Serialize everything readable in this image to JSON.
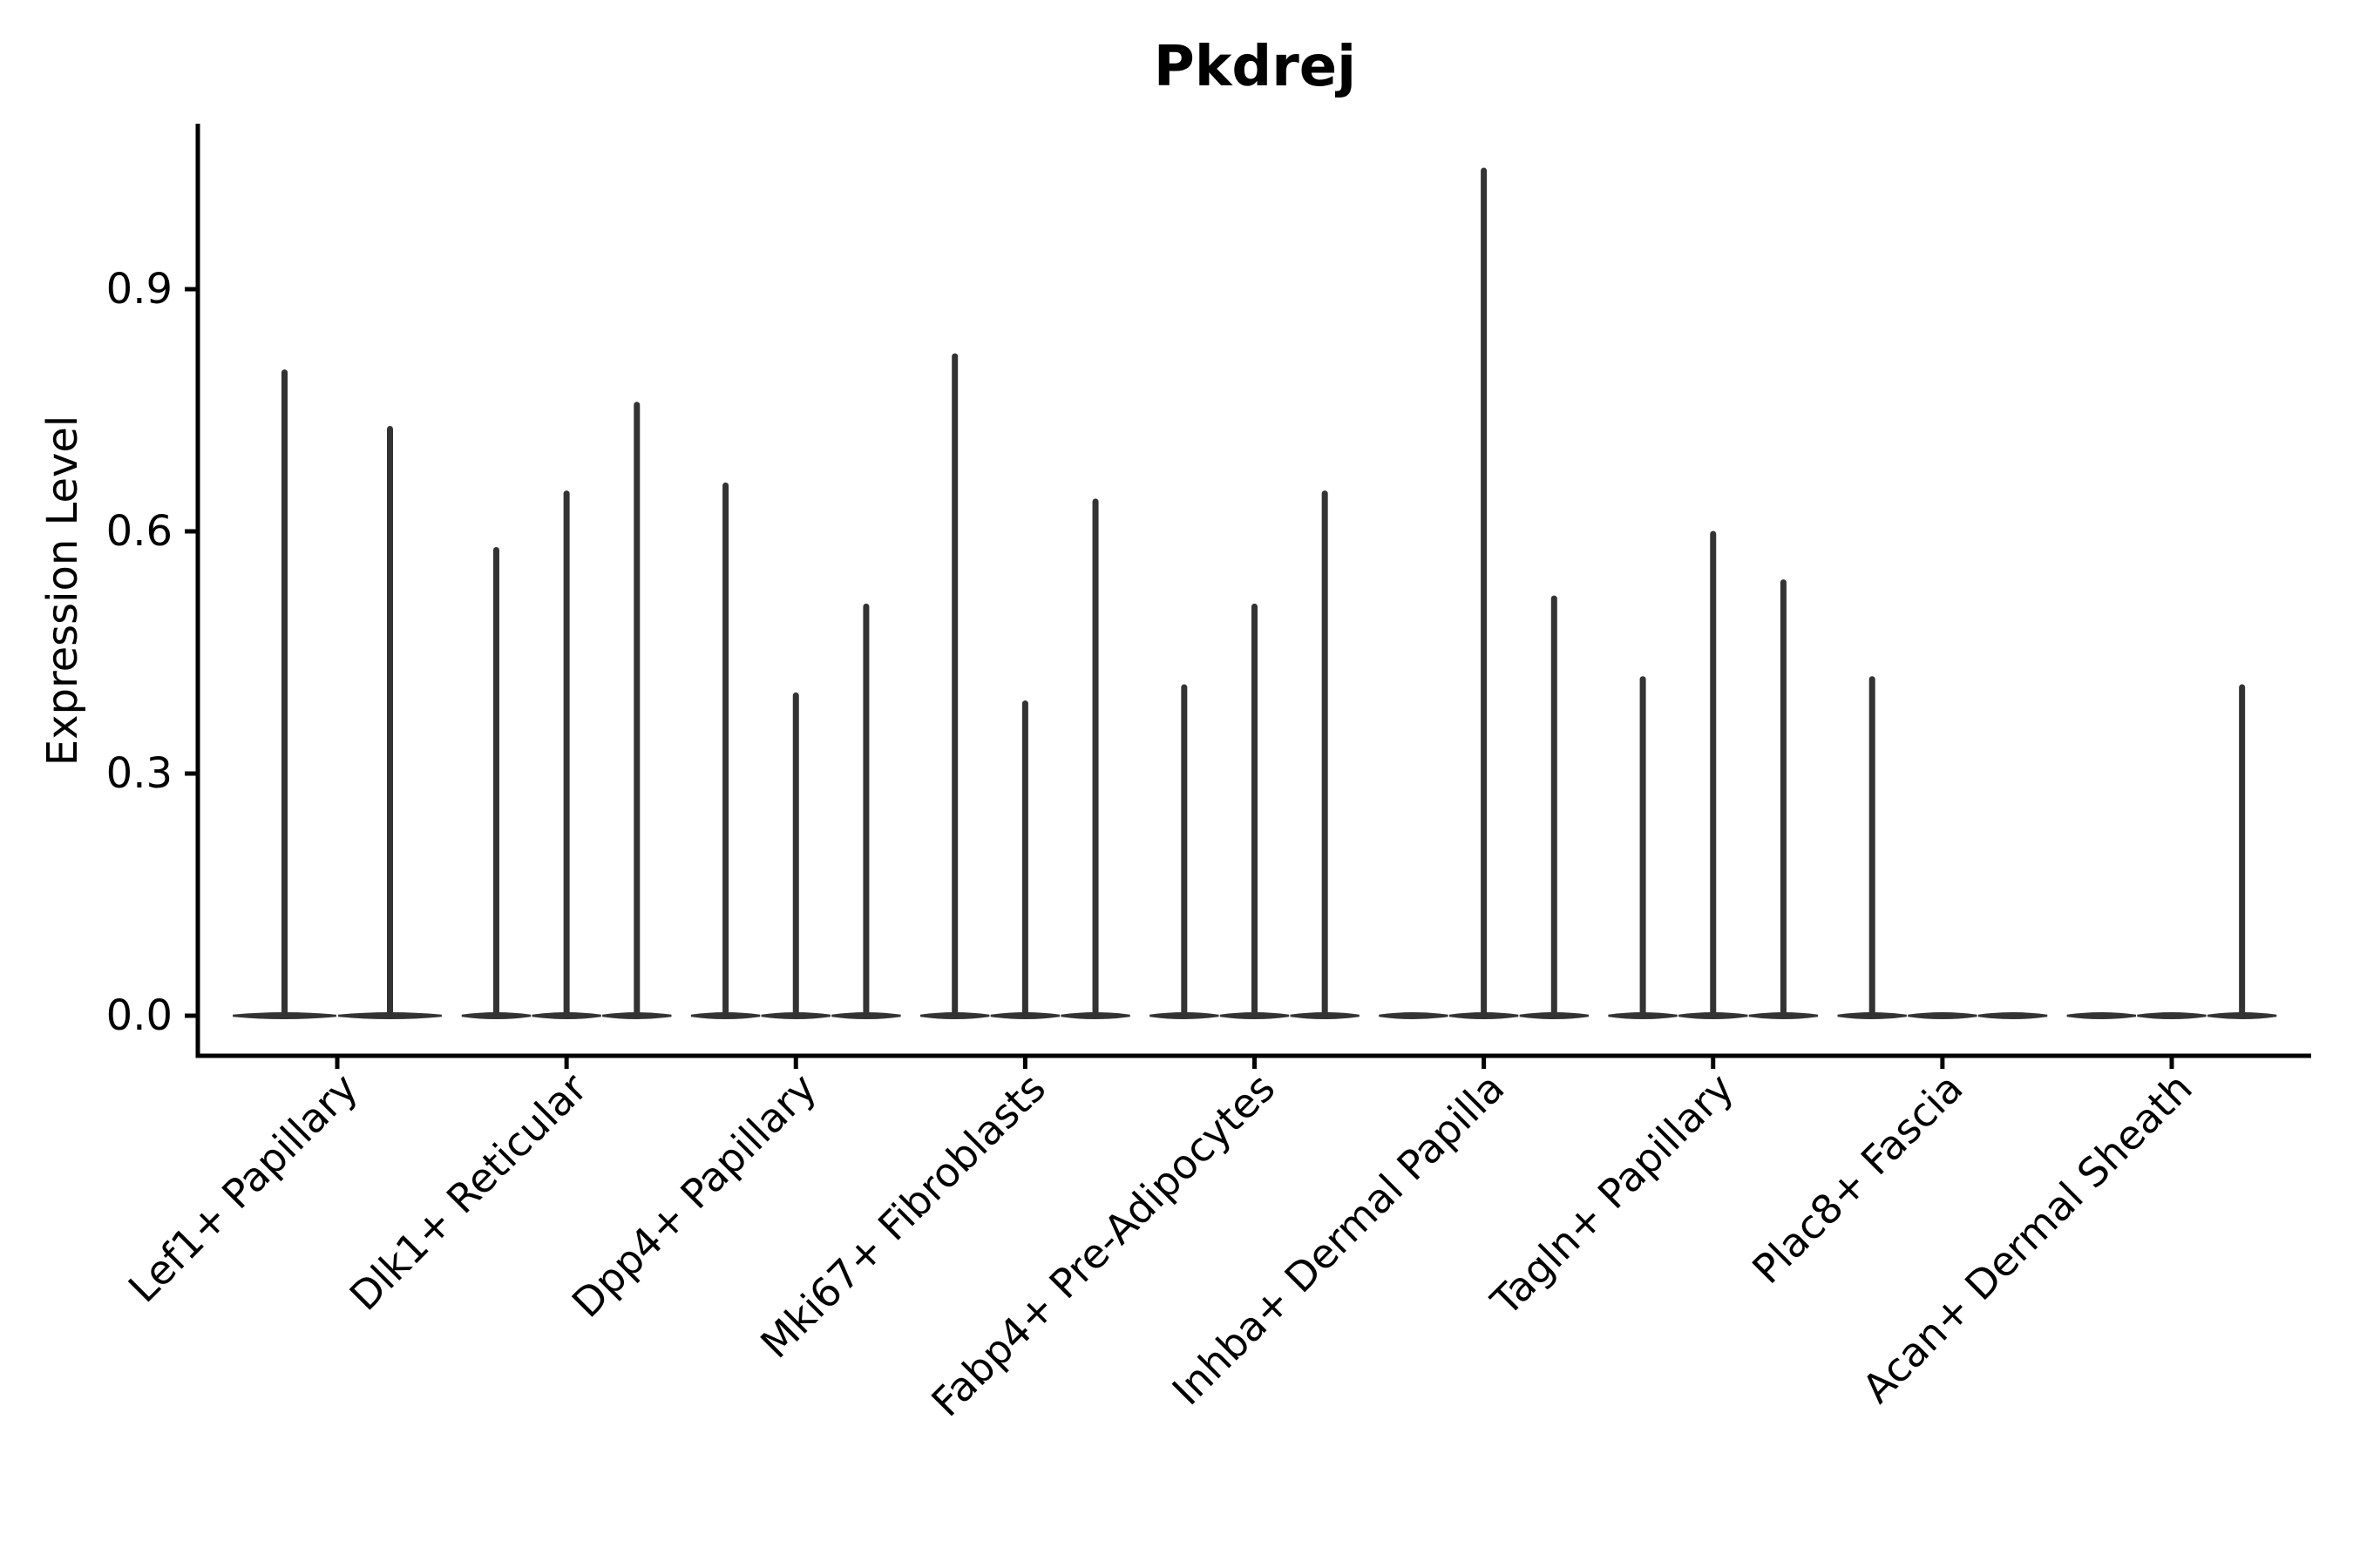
{
  "chart_data": {
    "type": "violin",
    "title": "Pkdrej",
    "ylabel": "Expression Level",
    "xlabel": "",
    "ylim": [
      -0.05,
      1.1
    ],
    "yticks": [
      "0.0",
      "0.3",
      "0.6",
      "0.9"
    ],
    "ytick_values": [
      0.0,
      0.3,
      0.6,
      0.9
    ],
    "grid": false,
    "legend_position": "none",
    "axis_color": "#000000",
    "line_color": "#333333",
    "background_color": "#ffffff",
    "categories": [
      "Lef1+ Papillary",
      "Dlk1+ Reticular",
      "Dpp4+ Papillary",
      "Mki67+ Fibroblasts",
      "Fabp4+ Pre-Adipocytes",
      "Inhba+ Dermal Papilla",
      "Tagln+ Papillary",
      "Plac8+ Fascia",
      "Acan+ Dermal Sheath"
    ],
    "violins": [
      {
        "category": "Lef1+ Papillary",
        "values": [
          0.8,
          0.73
        ]
      },
      {
        "category": "Dlk1+ Reticular",
        "values": [
          0.58,
          0.65,
          0.76
        ]
      },
      {
        "category": "Dpp4+ Papillary",
        "values": [
          0.66,
          0.4,
          0.51
        ]
      },
      {
        "category": "Mki67+ Fibroblasts",
        "values": [
          0.82,
          0.39,
          0.64
        ]
      },
      {
        "category": "Fabp4+ Pre-Adipocytes",
        "values": [
          0.41,
          0.51,
          0.65
        ]
      },
      {
        "category": "Inhba+ Dermal Papilla",
        "values": [
          0.0,
          1.05,
          0.52
        ]
      },
      {
        "category": "Tagln+ Papillary",
        "values": [
          0.42,
          0.6,
          0.54
        ]
      },
      {
        "category": "Plac8+ Fascia",
        "values": [
          0.42,
          0.0,
          0.0
        ]
      },
      {
        "category": "Acan+ Dermal Sheath",
        "values": [
          0.0,
          0.0,
          0.41
        ]
      }
    ]
  }
}
